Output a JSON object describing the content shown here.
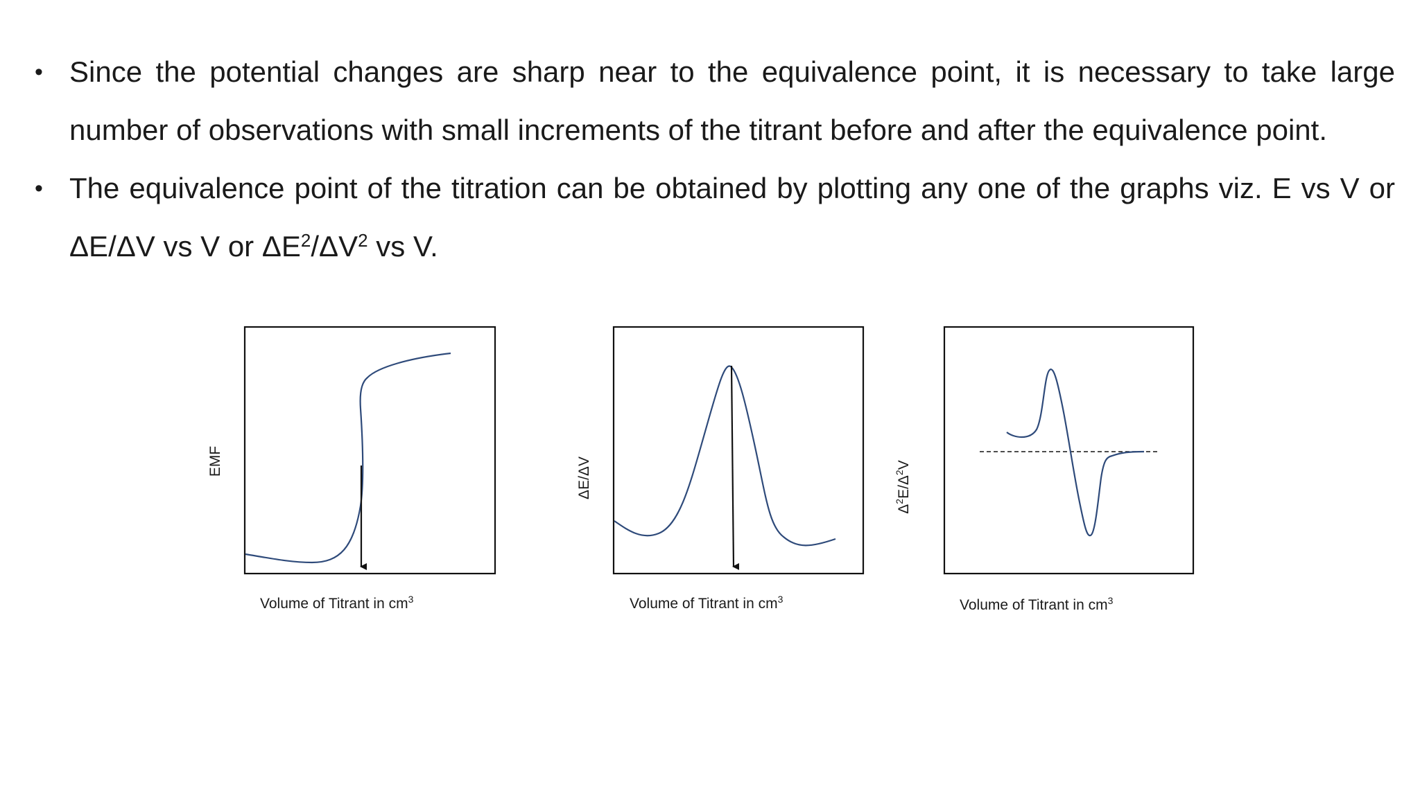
{
  "bullets": [
    {
      "text": "Since the potential changes are sharp near to the equivalence point, it is necessary to take large number of observations with small increments of the titrant before and after the equivalence point."
    },
    {
      "text_main": "The equivalence point of the titration can be obtained by plotting any one of the graphs viz. E vs V or ",
      "text_tail_1": "ΔE/ΔV vs V or ΔE",
      "sup_1": "2",
      "text_tail_2": "/ΔV",
      "sup_2": "2",
      "text_tail_3": " vs V."
    }
  ],
  "figures": [
    {
      "ylabel": "EMF",
      "xlabel_main": "Volume of Titrant in cm",
      "xlabel_sup": "3"
    },
    {
      "ylabel": "ΔE/ΔV",
      "xlabel_main": "Volume of Titrant in cm",
      "xlabel_sup": "3"
    },
    {
      "ylabel_main": "Δ",
      "ylabel_sup_1": "2",
      "ylabel_mid": "E/Δ",
      "ylabel_sup_2": "2",
      "ylabel_end": "V",
      "xlabel_main": "Volume of Titrant in cm",
      "xlabel_sup": "3"
    }
  ],
  "colors": {
    "curve": "#2e4a7a",
    "frame": "#111111"
  }
}
